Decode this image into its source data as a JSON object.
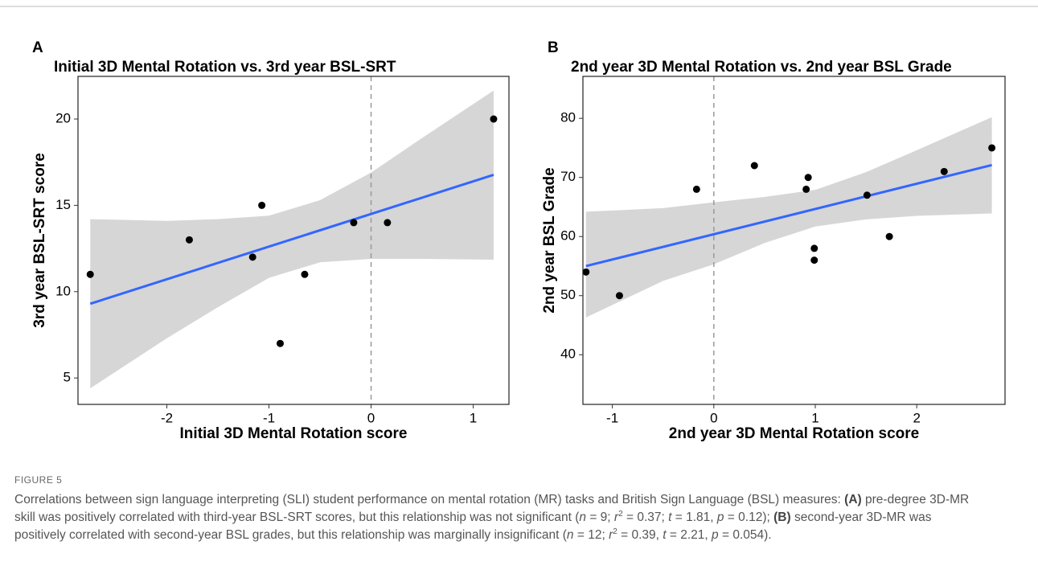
{
  "chart_data": [
    {
      "type": "scatter",
      "panel": "A",
      "title": "Initial 3D Mental Rotation vs. 3rd year BSL-SRT",
      "x_label": "Initial 3D Mental Rotation score",
      "y_label": "3rd year BSL-SRT score",
      "x": [
        -2.75,
        -1.78,
        -1.16,
        -1.07,
        -0.89,
        -0.65,
        -0.17,
        0.16,
        1.2
      ],
      "values": [
        11,
        13,
        12,
        15,
        7,
        11,
        14,
        14,
        20
      ],
      "color": "#000000",
      "fit": {
        "x": [
          -2.75,
          1.2
        ],
        "y": [
          9.3,
          16.77
        ],
        "color": "#3366ff"
      },
      "band": {
        "x": [
          -2.75,
          -2,
          -1.5,
          -1,
          -0.5,
          0,
          0.5,
          1.2
        ],
        "lower": [
          4.4,
          7.3,
          9.1,
          10.8,
          11.7,
          11.9,
          11.9,
          11.85
        ],
        "upper": [
          14.2,
          14.1,
          14.2,
          14.4,
          15.3,
          16.9,
          18.9,
          21.65
        ],
        "color": "#d6d6d6"
      },
      "vline": 0,
      "xlim": [
        -2.87,
        1.35
      ],
      "ylim": [
        3.47,
        22.47
      ],
      "xticks": [
        -2,
        -1,
        0,
        1
      ],
      "yticks": [
        5,
        10,
        15,
        20
      ]
    },
    {
      "type": "scatter",
      "panel": "B",
      "title": "2nd year 3D Mental Rotation vs. 2nd year BSL Grade",
      "x_label": "2nd year 3D Mental Rotation score",
      "y_label": "2nd year BSL Grade",
      "x": [
        -1.26,
        -0.93,
        -0.17,
        0.4,
        0.91,
        0.93,
        0.99,
        0.99,
        1.51,
        1.73,
        2.27,
        2.74
      ],
      "values": [
        54,
        50,
        68,
        72,
        68,
        70,
        58,
        56,
        67,
        60,
        71,
        75
      ],
      "color": "#000000",
      "fit": {
        "x": [
          -1.26,
          2.74
        ],
        "y": [
          55,
          72.1
        ],
        "color": "#3366ff"
      },
      "band": {
        "x": [
          -1.26,
          -0.5,
          0,
          0.5,
          1,
          1.5,
          2,
          2.74
        ],
        "lower": [
          46.3,
          52.5,
          55.3,
          58.9,
          61.7,
          62.9,
          63.5,
          63.9
        ],
        "upper": [
          64.2,
          64.8,
          65.8,
          66.7,
          67.9,
          70.9,
          74.6,
          80.2
        ],
        "color": "#d6d6d6"
      },
      "vline": 0,
      "xlim": [
        -1.29,
        2.87
      ],
      "ylim": [
        31.6,
        87.1
      ],
      "xticks": [
        -1,
        0,
        1,
        2
      ],
      "yticks": [
        40,
        50,
        60,
        70,
        80
      ]
    }
  ],
  "caption": {
    "label": "FIGURE 5",
    "segments": [
      "Correlations between sign language interpreting (SLI) student performance on mental rotation (MR) tasks and British Sign Language (BSL) measures: ",
      "(A)",
      " pre-degree 3D-MR skill was positively correlated with third-year BSL-SRT scores, but this relationship was not significant (",
      "n",
      " = 9; ",
      "r",
      "2",
      " = 0.37; ",
      "t",
      " = 1.81, ",
      "p",
      " = 0.12); ",
      "(B)",
      " second-year 3D-MR was positively correlated with second-year BSL grades, but this relationship was marginally insignificant (",
      "n",
      " = 12; ",
      "r",
      "2",
      " = 0.39, ",
      "t",
      " = 2.21, ",
      "p",
      " = 0.054)."
    ]
  }
}
